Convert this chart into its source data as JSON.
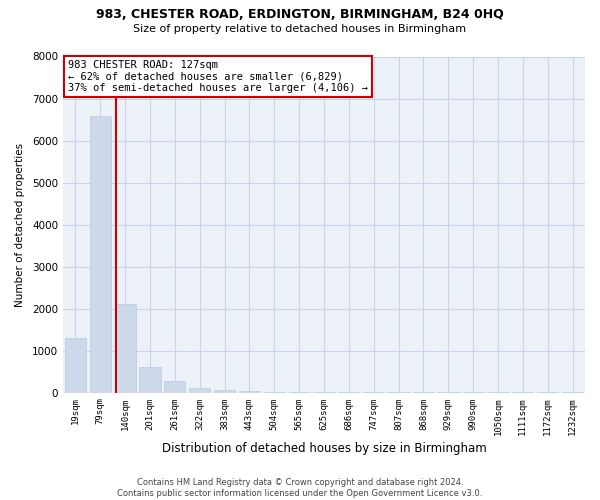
{
  "title": "983, CHESTER ROAD, ERDINGTON, BIRMINGHAM, B24 0HQ",
  "subtitle": "Size of property relative to detached houses in Birmingham",
  "xlabel": "Distribution of detached houses by size in Birmingham",
  "ylabel": "Number of detached properties",
  "footer": "Contains HM Land Registry data © Crown copyright and database right 2024.\nContains public sector information licensed under the Open Government Licence v3.0.",
  "categories": [
    "19sqm",
    "79sqm",
    "140sqm",
    "201sqm",
    "261sqm",
    "322sqm",
    "383sqm",
    "443sqm",
    "504sqm",
    "565sqm",
    "625sqm",
    "686sqm",
    "747sqm",
    "807sqm",
    "868sqm",
    "929sqm",
    "990sqm",
    "1050sqm",
    "1111sqm",
    "1172sqm",
    "1232sqm"
  ],
  "values": [
    1300,
    6580,
    2100,
    600,
    280,
    120,
    70,
    40,
    25,
    15,
    10,
    8,
    6,
    5,
    4,
    4,
    3,
    3,
    2,
    2,
    2
  ],
  "bar_color": "#cdd9ea",
  "bar_edge_color": "#b8cce4",
  "marker_line_color": "#cc0000",
  "marker_index": 2,
  "annotation_text": "983 CHESTER ROAD: 127sqm\n← 62% of detached houses are smaller (6,829)\n37% of semi-detached houses are larger (4,106) →",
  "annotation_box_color": "#ffffff",
  "annotation_box_edge_color": "#cc0000",
  "ylim": [
    0,
    8000
  ],
  "yticks": [
    0,
    1000,
    2000,
    3000,
    4000,
    5000,
    6000,
    7000,
    8000
  ],
  "background_color": "#ffffff",
  "grid_color": "#c8d4e8",
  "plot_bg_color": "#edf2f9"
}
